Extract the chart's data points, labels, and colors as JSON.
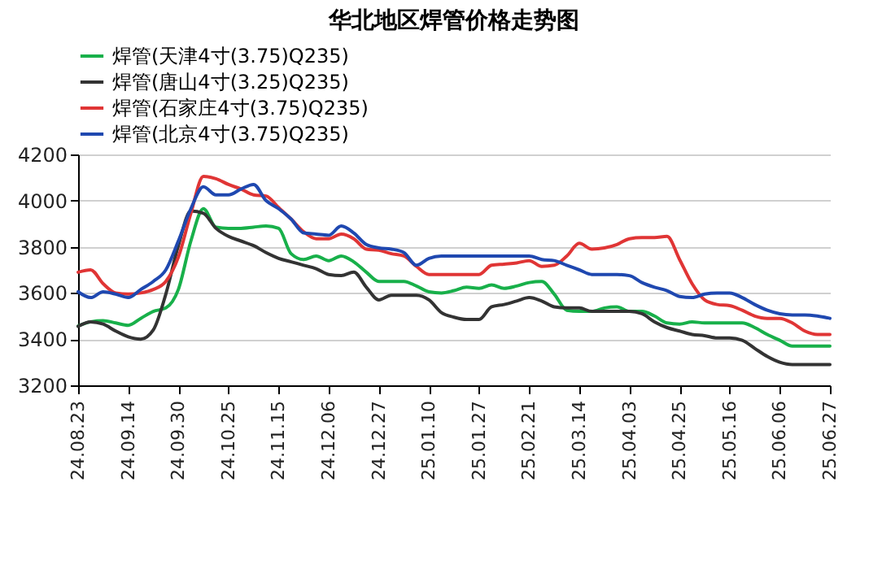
{
  "chart_data": {
    "type": "line",
    "title": "华北地区焊管价格走势图",
    "categories": [
      "24.08.23",
      null,
      null,
      null,
      "24.09.14",
      null,
      null,
      null,
      "24.09.30",
      null,
      null,
      null,
      "24.10.25",
      null,
      null,
      null,
      "24.11.15",
      null,
      null,
      null,
      "24.12.06",
      null,
      null,
      null,
      "24.12.27",
      null,
      null,
      null,
      "25.01.10",
      null,
      null,
      null,
      "25.01.27",
      null,
      null,
      null,
      "25.02.21",
      null,
      null,
      null,
      "25.03.14",
      null,
      null,
      null,
      "25.04.03",
      null,
      null,
      null,
      "25.04.25",
      null,
      null,
      null,
      "25.05.16",
      null,
      null,
      null,
      "25.06.06",
      null,
      null,
      null,
      "25.06.27"
    ],
    "series": [
      {
        "name": "焊管(天津4寸(3.75)Q235)",
        "color": "#18b04a",
        "values": [
          3457,
          3475,
          3480,
          3470,
          3460,
          3490,
          3520,
          3535,
          3615,
          3825,
          3965,
          3885,
          3880,
          3880,
          3885,
          3890,
          3880,
          3770,
          3745,
          3760,
          3740,
          3760,
          3735,
          3690,
          3650,
          3650,
          3650,
          3630,
          3605,
          3600,
          3610,
          3625,
          3620,
          3635,
          3620,
          3630,
          3645,
          3650,
          3595,
          3525,
          3520,
          3520,
          3535,
          3540,
          3520,
          3520,
          3500,
          3470,
          3465,
          3475,
          3470,
          3470,
          3470,
          3470,
          3450,
          3420,
          3395,
          3370,
          3370,
          3370,
          3370
        ]
      },
      {
        "name": "焊管(唐山4寸(3.25)Q235)",
        "color": "#333333",
        "values": [
          3455,
          3475,
          3465,
          3435,
          3410,
          3400,
          3440,
          3595,
          3805,
          3955,
          3945,
          3880,
          3845,
          3825,
          3805,
          3775,
          3750,
          3735,
          3720,
          3705,
          3680,
          3675,
          3690,
          3625,
          3570,
          3590,
          3590,
          3590,
          3570,
          3515,
          3495,
          3485,
          3485,
          3540,
          3550,
          3565,
          3580,
          3565,
          3540,
          3535,
          3535,
          3520,
          3520,
          3520,
          3520,
          3510,
          3475,
          3450,
          3435,
          3420,
          3415,
          3405,
          3405,
          3395,
          3360,
          3325,
          3300,
          3290,
          3290,
          3290,
          3290
        ]
      },
      {
        "name": "焊管(石家庄4寸(3.75)Q235)",
        "color": "#e03535",
        "values": [
          3690,
          3700,
          3640,
          3600,
          3595,
          3600,
          3615,
          3650,
          3755,
          3945,
          4105,
          4095,
          4070,
          4050,
          4025,
          4020,
          3970,
          3920,
          3865,
          3835,
          3835,
          3855,
          3835,
          3790,
          3785,
          3770,
          3760,
          3715,
          3680,
          3680,
          3680,
          3680,
          3680,
          3720,
          3725,
          3730,
          3740,
          3715,
          3720,
          3760,
          3815,
          3790,
          3795,
          3810,
          3835,
          3840,
          3840,
          3845,
          3745,
          3640,
          3570,
          3550,
          3545,
          3525,
          3500,
          3490,
          3490,
          3470,
          3435,
          3420,
          3420
        ]
      },
      {
        "name": "焊管(北京4寸(3.75)Q235)",
        "color": "#1f48b0",
        "values": [
          3605,
          3580,
          3605,
          3595,
          3580,
          3615,
          3650,
          3700,
          3825,
          3965,
          4060,
          4025,
          4025,
          4050,
          4070,
          4000,
          3965,
          3920,
          3860,
          3855,
          3850,
          3890,
          3860,
          3810,
          3795,
          3790,
          3775,
          3720,
          3750,
          3760,
          3760,
          3760,
          3760,
          3760,
          3760,
          3760,
          3760,
          3745,
          3740,
          3720,
          3700,
          3680,
          3680,
          3680,
          3675,
          3645,
          3625,
          3610,
          3585,
          3580,
          3595,
          3600,
          3600,
          3580,
          3550,
          3525,
          3510,
          3505,
          3505,
          3500,
          3490
        ]
      }
    ],
    "ylim": [
      3200,
      4200
    ],
    "yticks": [
      3200,
      3400,
      3600,
      3800,
      4000,
      4200
    ],
    "grid": "y",
    "legend": "top",
    "marker": "none",
    "line_style": "solid"
  }
}
